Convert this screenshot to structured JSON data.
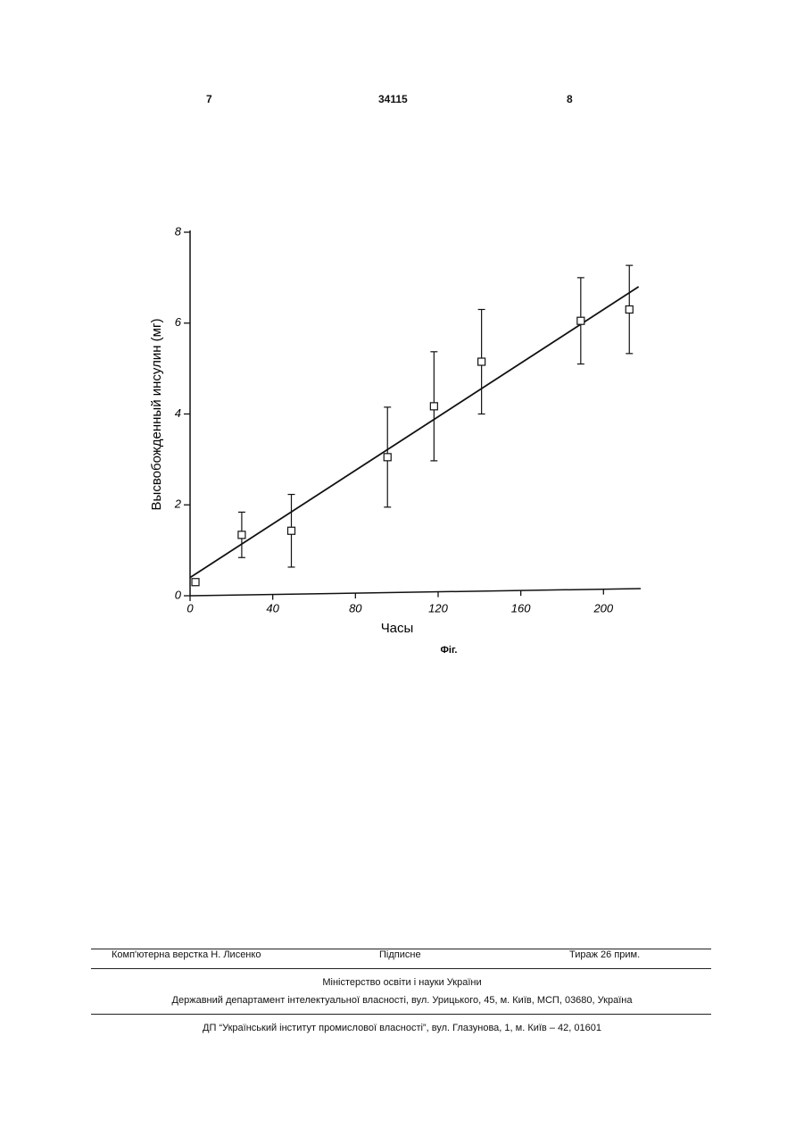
{
  "header": {
    "left": "7",
    "center": "34115",
    "right": "8"
  },
  "chart_data": {
    "type": "scatter",
    "y_label": "Высвобожденный инсулин (мг)",
    "x_label": "Часы",
    "caption": "Фіг.",
    "xlim": [
      0,
      218
    ],
    "ylim": [
      0,
      8
    ],
    "xticks": [
      0,
      40,
      80,
      120,
      160,
      200
    ],
    "yticks": [
      0,
      2,
      4,
      6,
      8
    ],
    "color": "#111111",
    "points": {
      "x": [
        2.6,
        25,
        49,
        95.5,
        118,
        141,
        189,
        212.5
      ],
      "y": [
        0.3,
        1.34,
        1.43,
        3.05,
        4.17,
        5.15,
        6.05,
        6.3
      ],
      "errors": [
        null,
        0.5,
        0.8,
        1.1,
        1.2,
        1.15,
        0.95,
        0.97
      ]
    },
    "fit_line": {
      "x": [
        0,
        217
      ],
      "y": [
        0.4,
        6.8
      ]
    }
  },
  "footer": {
    "composer": "Комп'ютерна верстка Н. Лисенко",
    "subscription": "Підписне",
    "circulation": "Тираж 26 прим.",
    "ministry": "Міністерство освіти і науки України",
    "department": "Державний департамент інтелектуальної власності, вул. Урицького, 45, м. Київ, МСП, 03680, Україна",
    "institute": "ДП “Український інститут промислової власності”, вул. Глазунова, 1, м. Київ – 42, 01601"
  }
}
